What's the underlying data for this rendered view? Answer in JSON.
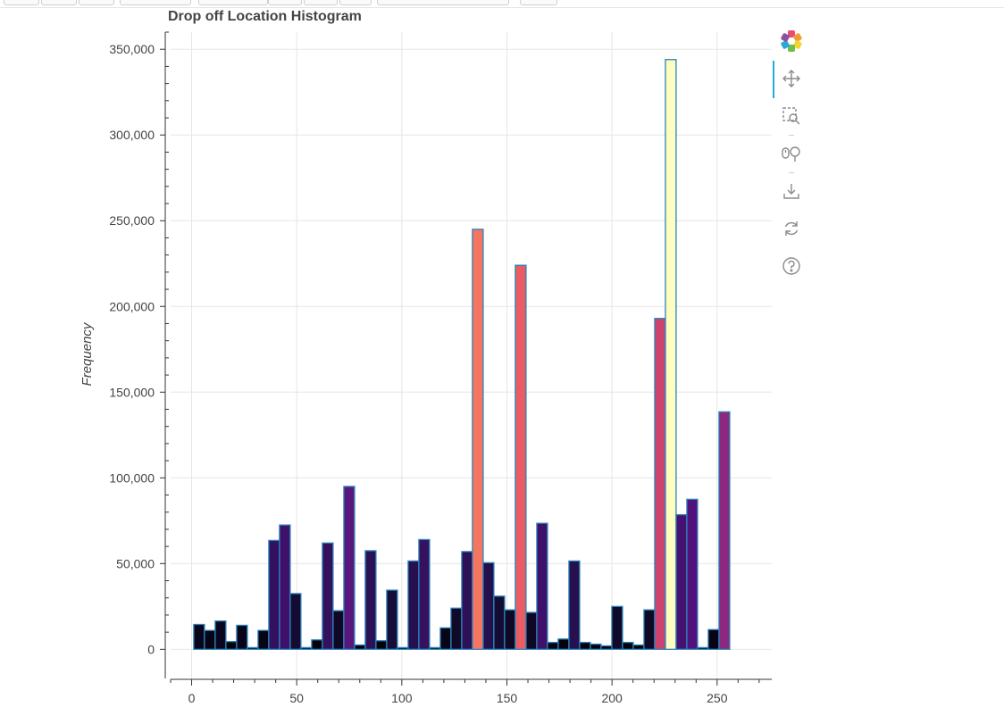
{
  "chart_data": {
    "type": "bar",
    "title": "Drop off Location Histogram",
    "xlabel": "",
    "ylabel": "Frequency",
    "xlim": [
      -10,
      276
    ],
    "ylim": [
      -17000,
      360000
    ],
    "xticks": [
      0,
      50,
      100,
      150,
      200,
      250
    ],
    "yticks": [
      0,
      50000,
      100000,
      150000,
      200000,
      250000,
      300000,
      350000
    ],
    "xtick_labels": [
      "0",
      "50",
      "100",
      "150",
      "200",
      "250"
    ],
    "ytick_labels": [
      "0",
      "50,000",
      "100,000",
      "150,000",
      "200,000",
      "250,000",
      "300,000",
      "350,000"
    ],
    "bin_width": 5.1,
    "bin_start": 1,
    "grid": true,
    "outline_color": "#2b83ba",
    "colormap": "magma",
    "values": [
      14500,
      11000,
      16500,
      4500,
      14000,
      1000,
      11000,
      63500,
      72500,
      32500,
      1000,
      5500,
      62000,
      22500,
      95000,
      2500,
      57500,
      5000,
      34500,
      1000,
      51500,
      64000,
      1000,
      12500,
      24000,
      57000,
      245000,
      50500,
      31000,
      23000,
      224000,
      21500,
      73500,
      4000,
      6000,
      51500,
      4000,
      3000,
      2000,
      25000,
      4000,
      2500,
      23000,
      193000,
      344000,
      78500,
      87500,
      1000,
      11500,
      138500
    ]
  },
  "toolbar": {
    "tools": [
      "bokeh-logo-icon",
      "pan-icon",
      "box-zoom-icon",
      "wheel-zoom-icon",
      "save-icon",
      "reset-icon",
      "help-icon"
    ]
  }
}
